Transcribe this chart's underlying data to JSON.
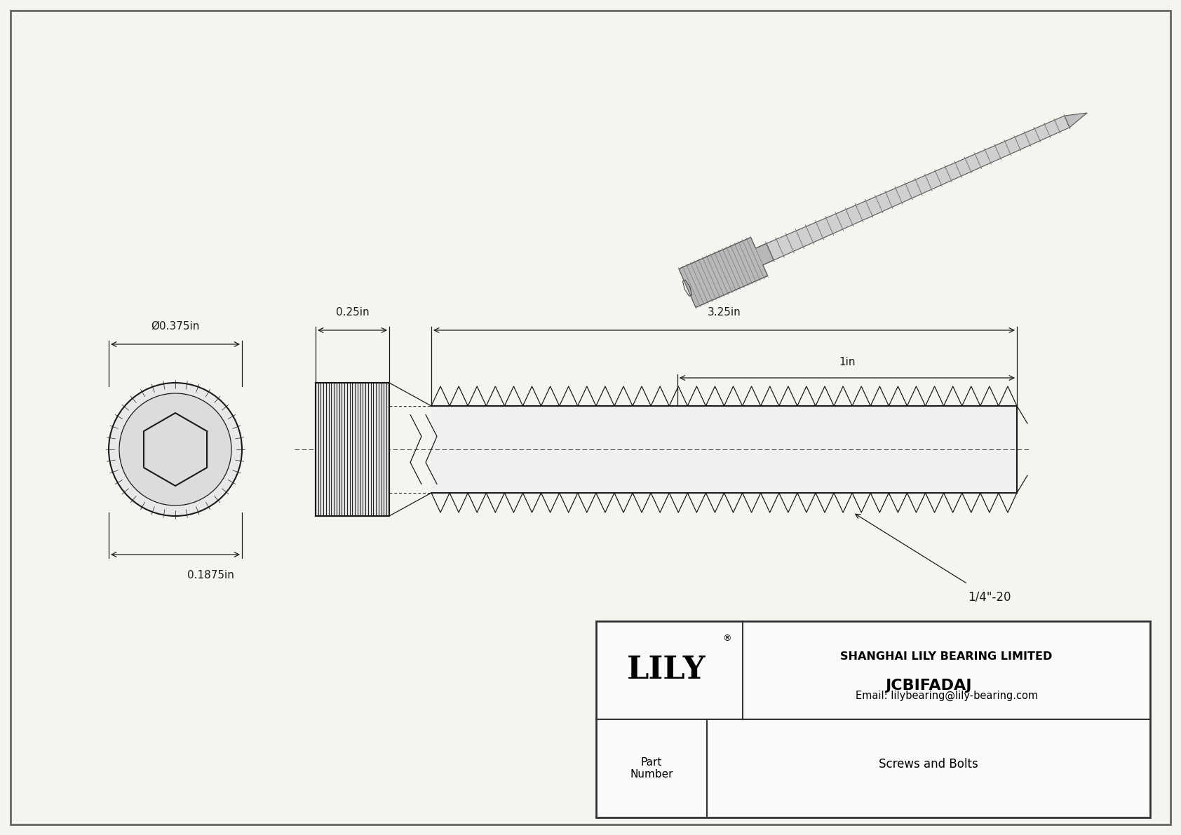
{
  "bg_color": "#f5f5f0",
  "line_color": "#1a1a1a",
  "title": "JCBIFADAJ",
  "subtitle": "Screws and Bolts",
  "company": "SHANGHAI LILY BEARING LIMITED",
  "email": "Email: lilybearing@lily-bearing.com",
  "part_label": "Part\nNumber",
  "dim_head_width": "Ø0.375in",
  "dim_head_height": "0.1875in",
  "dim_shaft": "0.25in",
  "dim_length": "3.25in",
  "dim_thread": "1in",
  "dim_thread_spec": "1/4\"-20"
}
